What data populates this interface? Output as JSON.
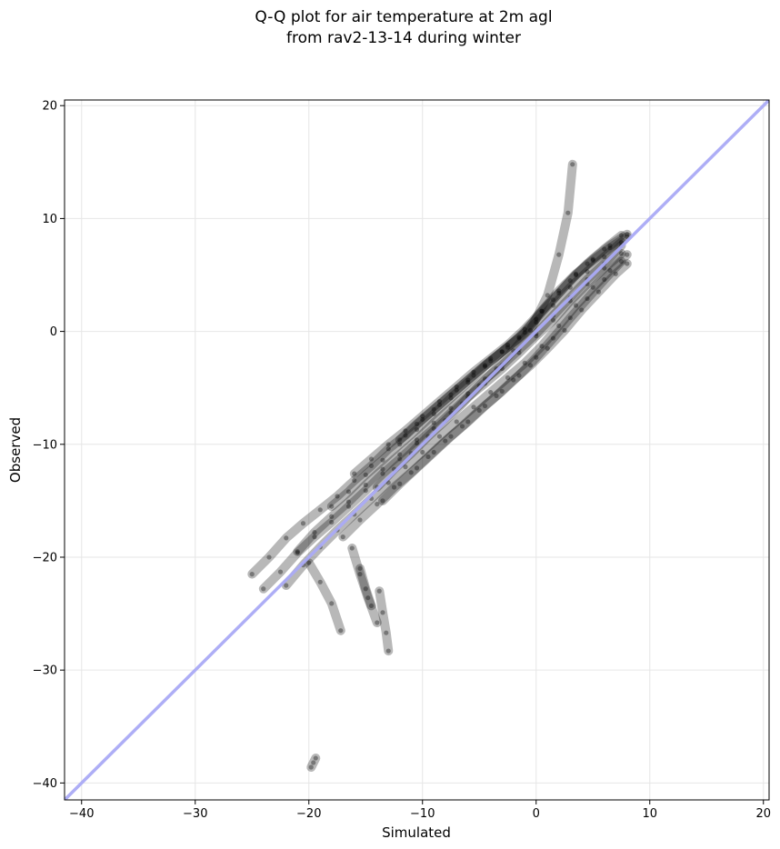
{
  "chart_data": {
    "type": "scatter",
    "title_line1": "Q-Q plot for air temperature at 2m agl",
    "title_line2": "from rav2-13-14 during winter",
    "xlabel": "Simulated",
    "ylabel": "Observed",
    "xlim": [
      -41.5,
      20.5
    ],
    "ylim": [
      -41.5,
      20.5
    ],
    "x_ticks": [
      -40,
      -30,
      -20,
      -10,
      0,
      10,
      20
    ],
    "y_ticks": [
      -40,
      -30,
      -20,
      -10,
      0,
      10,
      20
    ],
    "x_tick_labels": [
      "−40",
      "−30",
      "−20",
      "−10",
      "0",
      "10",
      "20"
    ],
    "y_tick_labels": [
      "−40",
      "−30",
      "−20",
      "−10",
      "0",
      "10",
      "20"
    ],
    "grid": true,
    "reference_line": {
      "x": [
        -41.5,
        20.5
      ],
      "y": [
        -41.5,
        20.5
      ],
      "color": "#aaaaf5"
    },
    "point_color": "#000000",
    "series": [
      {
        "x": [
          -25.0,
          -23.5,
          -22.0,
          -20.5,
          -19.0,
          -17.5,
          -16.0,
          -14.5,
          -13.0,
          -11.5,
          -10.0,
          -8.5,
          -7.0,
          -5.5,
          -4.0,
          -2.5,
          -1.0,
          0.5,
          2.0,
          3.5,
          5.0,
          6.5,
          8.0
        ],
        "y": [
          -21.5,
          -20.0,
          -18.3,
          -17.0,
          -15.8,
          -14.6,
          -13.2,
          -11.9,
          -10.4,
          -9.2,
          -7.8,
          -6.5,
          -5.2,
          -3.9,
          -2.6,
          -1.4,
          -0.1,
          1.8,
          3.6,
          5.1,
          6.3,
          7.4,
          8.4
        ]
      },
      {
        "x": [
          -24.0,
          -22.5,
          -21.0,
          -19.5,
          -18.0,
          -16.5,
          -15.0,
          -13.5,
          -12.0,
          -10.5,
          -9.0,
          -7.5,
          -6.0,
          -4.5,
          -3.0,
          -1.5,
          0.0,
          1.5,
          3.0,
          4.5,
          6.0,
          7.5
        ],
        "y": [
          -22.8,
          -21.3,
          -19.6,
          -18.2,
          -16.9,
          -15.5,
          -14.1,
          -12.6,
          -11.3,
          -9.9,
          -8.6,
          -7.2,
          -5.8,
          -4.6,
          -3.3,
          -1.9,
          -0.4,
          1.0,
          2.7,
          4.2,
          5.6,
          6.9
        ]
      },
      {
        "x": [
          -22.0,
          -20.5,
          -19.0,
          -17.5,
          -16.0,
          -14.5,
          -13.0,
          -11.5,
          -10.0,
          -8.5,
          -7.0,
          -5.5,
          -4.0,
          -2.5,
          -1.0,
          0.5,
          2.0,
          3.5,
          5.0,
          6.5,
          8.0
        ],
        "y": [
          -22.5,
          -20.7,
          -19.1,
          -17.6,
          -16.2,
          -14.8,
          -13.4,
          -12.0,
          -10.7,
          -9.3,
          -8.0,
          -6.7,
          -5.4,
          -4.1,
          -2.8,
          -1.3,
          0.5,
          2.3,
          3.9,
          5.4,
          6.8
        ]
      },
      {
        "x": [
          -21.0,
          -19.5,
          -18.0,
          -16.5,
          -15.0,
          -13.5,
          -12.0,
          -10.5,
          -9.0,
          -7.5,
          -6.0,
          -4.5,
          -3.0,
          -1.5,
          0.0,
          1.5,
          3.0,
          4.5,
          6.0,
          7.5
        ],
        "y": [
          -19.5,
          -17.8,
          -16.4,
          -15.1,
          -13.6,
          -12.2,
          -10.9,
          -9.6,
          -8.1,
          -6.8,
          -5.5,
          -4.2,
          -3.0,
          -1.6,
          -0.2,
          1.4,
          3.0,
          4.6,
          6.0,
          7.6
        ]
      },
      {
        "x": [
          -18.0,
          -16.5,
          -15.0,
          -13.5,
          -12.0,
          -10.5,
          -9.0,
          -7.5,
          -6.0,
          -4.5,
          -3.0,
          -1.5,
          0.0,
          1.5,
          3.0,
          4.5,
          6.0,
          7.5
        ],
        "y": [
          -15.5,
          -14.2,
          -12.7,
          -11.4,
          -10.0,
          -8.7,
          -7.3,
          -5.9,
          -4.5,
          -3.1,
          -1.8,
          -0.6,
          0.8,
          2.3,
          3.9,
          5.3,
          6.6,
          7.9
        ]
      },
      {
        "x": [
          -17.0,
          -15.5,
          -14.0,
          -12.5,
          -11.0,
          -9.5,
          -8.0,
          -6.5,
          -5.0,
          -3.5,
          -2.0,
          -0.5,
          1.0,
          2.5,
          4.0,
          5.5,
          7.0,
          8.0
        ],
        "y": [
          -18.2,
          -16.7,
          -15.3,
          -13.8,
          -12.5,
          -11.1,
          -9.7,
          -8.4,
          -7.0,
          -5.7,
          -4.3,
          -3.0,
          -1.5,
          0.1,
          1.9,
          3.5,
          5.1,
          6.0
        ]
      },
      {
        "x": [
          -16.0,
          -14.5,
          -13.0,
          -11.5,
          -10.0,
          -8.5,
          -7.0,
          -5.5,
          -4.0,
          -2.5,
          -1.0,
          0.5,
          2.0,
          3.5,
          5.0,
          6.5,
          8.0
        ],
        "y": [
          -12.6,
          -11.3,
          -10.0,
          -8.8,
          -7.5,
          -6.2,
          -4.9,
          -3.6,
          -2.4,
          -1.2,
          0.2,
          1.8,
          3.4,
          5.0,
          6.4,
          7.6,
          8.6
        ]
      },
      {
        "x": [
          -13.5,
          -12.0,
          -10.5,
          -9.0,
          -7.5,
          -6.0,
          -4.5,
          -3.0,
          -1.5,
          0.0,
          1.5,
          3.0,
          4.5,
          6.0,
          7.5
        ],
        "y": [
          -15.0,
          -13.5,
          -12.1,
          -10.7,
          -9.3,
          -8.0,
          -6.6,
          -5.3,
          -3.9,
          -2.3,
          -0.6,
          1.2,
          2.9,
          4.6,
          6.2
        ]
      },
      {
        "x": [
          -12.0,
          -10.5,
          -9.0,
          -7.5,
          -6.0,
          -4.5,
          -3.0,
          -1.5,
          0.0,
          1.5,
          3.0,
          4.5,
          6.0,
          7.5
        ],
        "y": [
          -9.6,
          -8.2,
          -6.9,
          -5.6,
          -4.3,
          -3.0,
          -1.8,
          -0.5,
          1.1,
          2.8,
          4.5,
          6.0,
          7.3,
          8.5
        ]
      },
      {
        "x": [
          -14.0,
          -12.5,
          -11.0,
          -9.5,
          -8.0,
          -6.5,
          -5.0,
          -3.5,
          -2.0,
          -0.5,
          1.0,
          2.0,
          2.8,
          3.2
        ],
        "y": [
          -13.8,
          -12.2,
          -10.8,
          -9.3,
          -7.9,
          -6.4,
          -4.8,
          -3.3,
          -1.7,
          0.1,
          3.2,
          6.8,
          10.5,
          14.8
        ]
      },
      {
        "x": [
          -20.0,
          -19.0,
          -18.0,
          -17.2
        ],
        "y": [
          -20.5,
          -22.2,
          -24.1,
          -26.5
        ]
      },
      {
        "x": [
          -16.2,
          -15.5,
          -14.8,
          -14.0
        ],
        "y": [
          -19.2,
          -21.5,
          -23.6,
          -25.8
        ]
      },
      {
        "x": [
          -13.8,
          -13.5,
          -13.2,
          -13.0
        ],
        "y": [
          -23.0,
          -24.9,
          -26.7,
          -28.3
        ]
      },
      {
        "x": [
          -15.5,
          -15.0,
          -14.5
        ],
        "y": [
          -21.0,
          -22.8,
          -24.3
        ]
      },
      {
        "x": [
          -19.8,
          -19.6,
          -19.4
        ],
        "y": [
          -38.6,
          -38.2,
          -37.8
        ]
      }
    ]
  }
}
